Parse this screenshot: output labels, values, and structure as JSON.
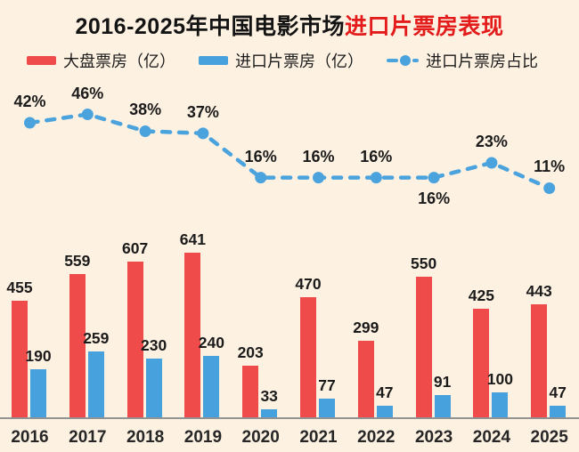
{
  "title": {
    "black": "2016-2025年中国电影市场",
    "red": "进口片票房表现"
  },
  "legend": [
    {
      "label": "大盘票房（亿）",
      "type": "bar-swatch",
      "color": "#f04b4b"
    },
    {
      "label": "进口片票房（亿）",
      "type": "bar-swatch",
      "color": "#47a1dd"
    },
    {
      "label": "进口片票房占比",
      "type": "dashed-line",
      "color": "#4ba3dd"
    }
  ],
  "chart_data": {
    "type": "bar",
    "title": "2016-2025年中国电影市场进口片票房表现",
    "categories": [
      "2016",
      "2017",
      "2018",
      "2019",
      "2020",
      "2021",
      "2022",
      "2023",
      "2024",
      "2025"
    ],
    "series": [
      {
        "name": "大盘票房（亿）",
        "type": "bar",
        "color": "#f04b4b",
        "values": [
          455,
          559,
          607,
          641,
          203,
          470,
          299,
          550,
          425,
          443
        ]
      },
      {
        "name": "进口片票房（亿）",
        "type": "bar",
        "color": "#47a1dd",
        "values": [
          190,
          259,
          230,
          240,
          33,
          77,
          47,
          91,
          100,
          47
        ]
      },
      {
        "name": "进口片票房占比",
        "type": "line",
        "line_style": "dashed",
        "color": "#4ba3dd",
        "values": [
          42,
          46,
          38,
          37,
          16,
          16,
          16,
          16,
          23,
          11
        ],
        "labels": [
          "42%",
          "46%",
          "38%",
          "37%",
          "16%",
          "16%",
          "16%",
          "16%",
          "23%",
          "11%"
        ],
        "label_position": [
          "above",
          "above",
          "above",
          "above",
          "above",
          "above",
          "above",
          "below",
          "above",
          "above"
        ]
      }
    ],
    "xlabel": "",
    "ylabel": "",
    "grid": false,
    "legend_position": "top",
    "background": "#fdf1e2",
    "axis_line_color": "#939393"
  }
}
